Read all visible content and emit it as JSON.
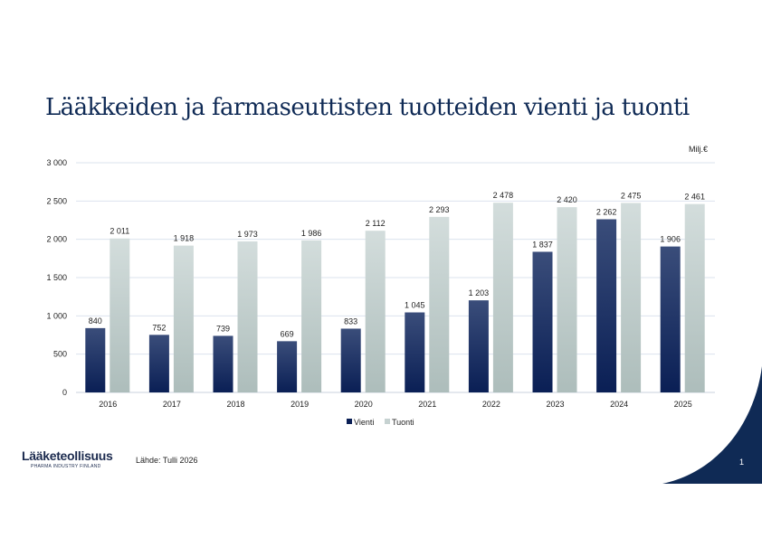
{
  "title": "Lääkkeiden ja farmaseuttisten tuotteiden vienti ja tuonti",
  "footer": {
    "logo_text": "Lääketeollisuus",
    "logo_subtext": "PHARMA INDUSTRY FINLAND",
    "source": "Lähde: Tulli 2026",
    "page_number": "1"
  },
  "colors": {
    "navy": "#0f2a55",
    "vienti_top": "#3a4d7a",
    "vienti_bottom": "#0a1f55",
    "tuonti_top": "#d3dddc",
    "tuonti_bottom": "#adbdbb"
  },
  "chart_data": {
    "type": "bar",
    "unit": "Milj.€",
    "categories": [
      "2016",
      "2017",
      "2018",
      "2019",
      "2020",
      "2021",
      "2022",
      "2023",
      "2024",
      "2025"
    ],
    "series": [
      {
        "name": "Vienti",
        "values": [
          840,
          752,
          739,
          669,
          833,
          1045,
          1203,
          1837,
          2262,
          1906
        ],
        "labels": [
          "840",
          "752",
          "739",
          "669",
          "833",
          "1 045",
          "1 203",
          "1 837",
          "2 262",
          "1 906"
        ]
      },
      {
        "name": "Tuonti",
        "values": [
          2011,
          1918,
          1973,
          1986,
          2112,
          2293,
          2478,
          2420,
          2475,
          2461
        ],
        "labels": [
          "2 011",
          "1 918",
          "1 973",
          "1 986",
          "2 112",
          "2 293",
          "2 478",
          "2 420",
          "2 475",
          "2 461"
        ]
      }
    ],
    "yticks": [
      "0",
      "500",
      "1 000",
      "1 500",
      "2 000",
      "2 500",
      "3 000"
    ],
    "ylim": [
      0,
      3000
    ],
    "grid": true,
    "legend": "bottom"
  }
}
